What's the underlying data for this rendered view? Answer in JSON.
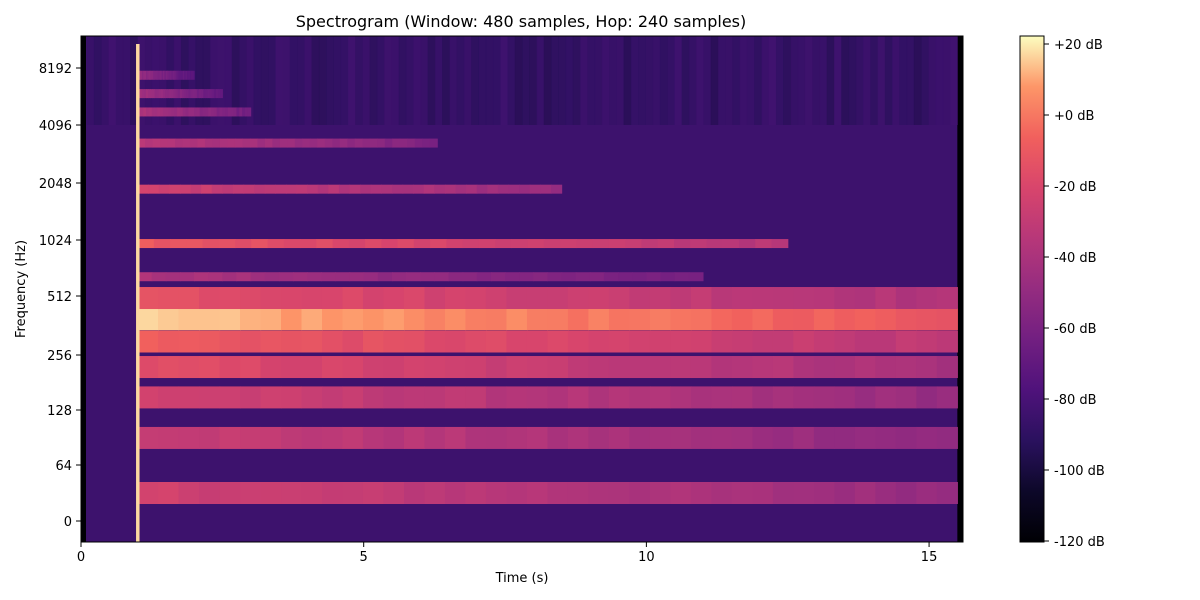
{
  "chart_data": {
    "type": "heatmap",
    "title": "Spectrogram (Window: 480 samples, Hop: 240 samples)",
    "xlabel": "Time (s)",
    "ylabel": "Frequency (Hz)",
    "xlim": [
      0,
      15.6
    ],
    "x_ticks": [
      0,
      5,
      10,
      15
    ],
    "x_tick_labels": [
      "0",
      "5",
      "10",
      "15"
    ],
    "y_scale": "log2",
    "y_ticks": [
      0,
      64,
      128,
      256,
      512,
      1024,
      2048,
      4096,
      8192
    ],
    "y_tick_labels": [
      "0",
      "64",
      "128",
      "256",
      "512",
      "1024",
      "2048",
      "4096",
      "8192"
    ],
    "colormap": "magma",
    "colorbar": {
      "range_db": [
        -120,
        20
      ],
      "ticks": [
        20,
        0,
        -20,
        -40,
        -60,
        -80,
        -100,
        -120
      ],
      "tick_labels": [
        "+20 dB",
        "+0 dB",
        "-20 dB",
        "-40 dB",
        "-60 dB",
        "-80 dB",
        "-100 dB",
        "-120 dB"
      ]
    },
    "onset_time_s": 1.0,
    "noise_floor_db": -85,
    "bands": [
      {
        "freq_hz": 32,
        "level_db": -25,
        "decay_end_s": 15.5
      },
      {
        "freq_hz": 90,
        "level_db": -28,
        "decay_end_s": 15.5
      },
      {
        "freq_hz": 150,
        "level_db": -25,
        "decay_end_s": 15.5
      },
      {
        "freq_hz": 220,
        "level_db": -18,
        "decay_end_s": 15.5
      },
      {
        "freq_hz": 300,
        "level_db": -10,
        "decay_end_s": 15.5
      },
      {
        "freq_hz": 390,
        "level_db": 12,
        "decay_end_s": 15.5
      },
      {
        "freq_hz": 500,
        "level_db": -15,
        "decay_end_s": 15.5
      },
      {
        "freq_hz": 650,
        "level_db": -40,
        "decay_end_s": 11.0
      },
      {
        "freq_hz": 980,
        "level_db": -12,
        "decay_end_s": 12.5
      },
      {
        "freq_hz": 1900,
        "level_db": -25,
        "decay_end_s": 8.5
      },
      {
        "freq_hz": 3300,
        "level_db": -35,
        "decay_end_s": 6.3
      },
      {
        "freq_hz": 4800,
        "level_db": -40,
        "decay_end_s": 3.0
      },
      {
        "freq_hz": 6000,
        "level_db": -45,
        "decay_end_s": 2.5
      },
      {
        "freq_hz": 7500,
        "level_db": -50,
        "decay_end_s": 2.0
      }
    ]
  }
}
